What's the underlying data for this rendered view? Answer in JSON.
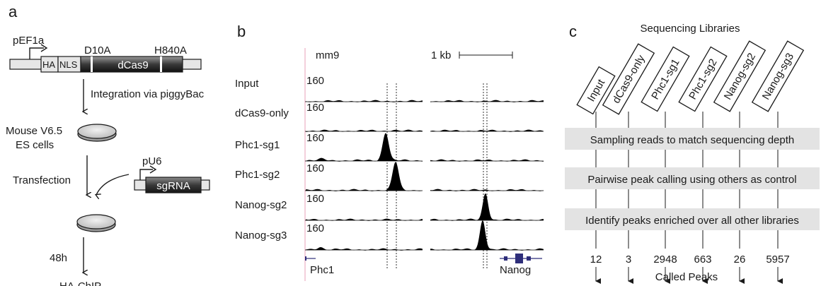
{
  "panel_a": {
    "letter": "a",
    "promoter_ef1a": "pEF1a",
    "ha": "HA",
    "nls": "NLS",
    "dcas9": "dCas9",
    "mut1": "D10A",
    "mut2": "H840A",
    "step_integration": "Integration via piggyBac",
    "cells_line1": "Mouse V6.5",
    "cells_line2": "ES cells",
    "promoter_u6": "pU6",
    "sgrna": "sgRNA",
    "step_transfection": "Transfection",
    "step_time": "48h",
    "step_final": "HA-ChIP"
  },
  "panel_b": {
    "letter": "b",
    "genome": "mm9",
    "scale": "1 kb",
    "tracks": [
      {
        "name": "Input",
        "max": "160"
      },
      {
        "name": "dCas9-only",
        "max": "160"
      },
      {
        "name": "Phc1-sg1",
        "max": "160"
      },
      {
        "name": "Phc1-sg2",
        "max": "160"
      },
      {
        "name": "Nanog-sg2",
        "max": "160"
      },
      {
        "name": "Nanog-sg3",
        "max": "160"
      }
    ],
    "gene_left": "Phc1",
    "gene_right": "Nanog",
    "gene_color": "#2e2e7a",
    "peak_color": "#000000"
  },
  "panel_c": {
    "letter": "c",
    "title": "Sequencing Libraries",
    "libraries": [
      "Input",
      "dCas9-only",
      "Phc1-sg1",
      "Phc1-sg2",
      "Nanog-sg2",
      "Nanog-sg3"
    ],
    "steps": [
      "Sampling reads to match sequencing depth",
      "Pairwise peak calling using others as control",
      "Identify peaks enriched over all other libraries"
    ],
    "counts": [
      "12",
      "3",
      "2948",
      "663",
      "26",
      "5957"
    ],
    "footer": "Called Peaks",
    "step_bg": "#e3e3e3"
  }
}
